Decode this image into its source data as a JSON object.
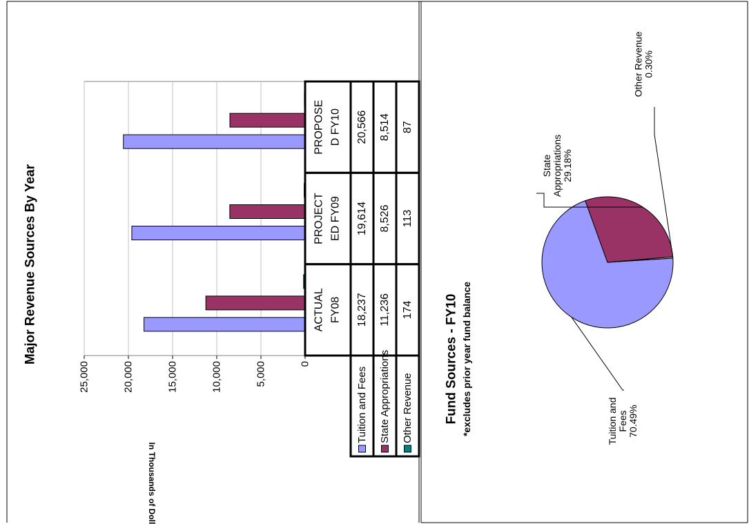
{
  "chart_data": [
    {
      "type": "bar",
      "title": "Major Revenue Sources By Year",
      "ylabel": "In Thousands of Dollars",
      "ylim": [
        0,
        25000
      ],
      "yticks": [
        "0",
        "5,000",
        "10,000",
        "15,000",
        "20,000",
        "25,000"
      ],
      "categories": [
        "ACTUAL FY08",
        "PROJECTED FY09",
        "PROPOSED FY10"
      ],
      "category_label_lines": [
        [
          "ACTUAL",
          "FY08"
        ],
        [
          "PROJECT",
          "ED FY09"
        ],
        [
          "PROPOSE",
          "D FY10"
        ]
      ],
      "series": [
        {
          "name": "Tuition and Fees",
          "values": [
            18237,
            19614,
            20566
          ],
          "labels": [
            "18,237",
            "19,614",
            "20,566"
          ],
          "color": "#9999ff"
        },
        {
          "name": "State Appropriations",
          "values": [
            11236,
            8526,
            8514
          ],
          "labels": [
            "11,236",
            "8,526",
            "8,514"
          ],
          "color": "#993366"
        },
        {
          "name": "Other Revenue",
          "values": [
            174,
            113,
            87
          ],
          "labels": [
            "174",
            "113",
            "87"
          ],
          "color": "#008080"
        }
      ],
      "grid": true,
      "data_table": true,
      "orientation": "rotated 90 degrees counter-clockwise"
    },
    {
      "type": "pie",
      "title": "Fund Sources - FY10",
      "subtitle": "*excludes prior year fund balance",
      "slices": [
        {
          "label": "Tuition and Fees",
          "label_lines": [
            "Tuition and",
            "Fees"
          ],
          "percent": 70.49,
          "percent_label": "70.49%",
          "color": "#9999ff"
        },
        {
          "label": "State Appropriations",
          "label_lines": [
            "State",
            "Appropriations"
          ],
          "percent": 29.18,
          "percent_label": "29.18%",
          "color": "#993366"
        },
        {
          "label": "Other Revenue",
          "label_lines": [
            "Other Revenue"
          ],
          "percent": 0.3,
          "percent_label": "0.30%",
          "color": "#ffffcc"
        }
      ],
      "orientation": "rotated 90 degrees counter-clockwise"
    }
  ]
}
